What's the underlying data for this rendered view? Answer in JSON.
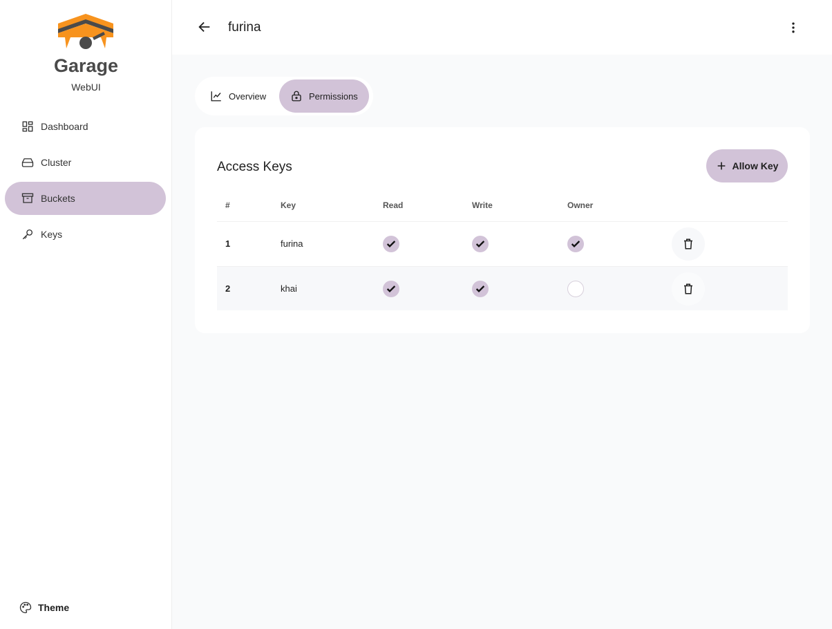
{
  "brand": {
    "name": "Garage",
    "subtitle": "WebUI"
  },
  "sidebar": {
    "items": [
      {
        "label": "Dashboard",
        "icon": "dashboard-icon"
      },
      {
        "label": "Cluster",
        "icon": "hard-drive-icon"
      },
      {
        "label": "Buckets",
        "icon": "archive-icon",
        "active": true
      },
      {
        "label": "Keys",
        "icon": "key-icon"
      }
    ],
    "theme": "Theme"
  },
  "header": {
    "title": "furina"
  },
  "tabs": [
    {
      "label": "Overview",
      "icon": "chart-icon"
    },
    {
      "label": "Permissions",
      "icon": "lock-icon",
      "active": true
    }
  ],
  "card": {
    "title": "Access Keys",
    "allow_label": "Allow Key",
    "columns": [
      "#",
      "Key",
      "Read",
      "Write",
      "Owner"
    ],
    "rows": [
      {
        "n": "1",
        "key": "furina",
        "read": true,
        "write": true,
        "owner": true
      },
      {
        "n": "2",
        "key": "khai",
        "read": true,
        "write": true,
        "owner": false
      }
    ]
  },
  "colors": {
    "accent": "#d2c3d8",
    "logo": "#f7931e"
  }
}
